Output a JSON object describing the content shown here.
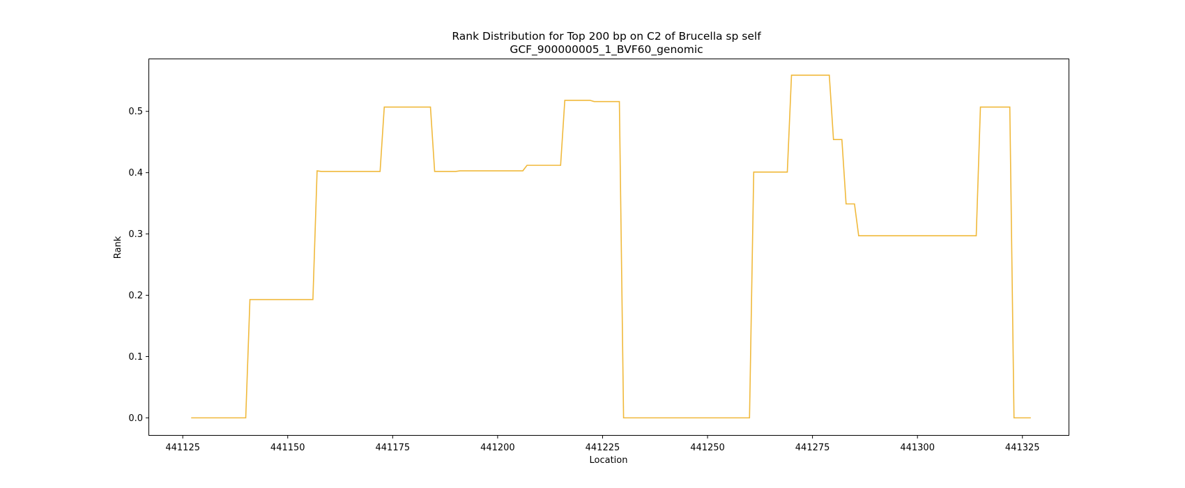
{
  "chart_data": {
    "type": "line",
    "title": "Rank Distribution for Top 200 bp on C2 of Brucella sp self",
    "subtitle": "GCF_900000005_1_BVF60_genomic",
    "xlabel": "Location",
    "ylabel": "Rank",
    "xlim": [
      441117,
      441336
    ],
    "ylim": [
      -0.028,
      0.585
    ],
    "xticks": [
      441125,
      441150,
      441175,
      441200,
      441225,
      441250,
      441275,
      441300,
      441325
    ],
    "yticks": [
      0.0,
      0.1,
      0.2,
      0.3,
      0.4,
      0.5
    ],
    "yticks_labels": [
      "0.0",
      "0.1",
      "0.2",
      "0.3",
      "0.4",
      "0.5"
    ],
    "grid": false,
    "color": "#f0b93b",
    "series": [
      {
        "x": [
          441127,
          441140,
          441141,
          441156,
          441157,
          441158,
          441172,
          441173,
          441184,
          441185,
          441190,
          441191,
          441206,
          441207,
          441209,
          441215,
          441216,
          441222,
          441223,
          441229,
          441230,
          441260,
          441261,
          441269,
          441270,
          441279,
          441280,
          441282,
          441283,
          441285,
          441286,
          441314,
          441315,
          441322,
          441323,
          441327
        ],
        "y": [
          0.0,
          0.0,
          0.193,
          0.193,
          0.403,
          0.402,
          0.402,
          0.507,
          0.507,
          0.402,
          0.402,
          0.403,
          0.403,
          0.412,
          0.412,
          0.412,
          0.518,
          0.518,
          0.516,
          0.516,
          0.0,
          0.0,
          0.401,
          0.401,
          0.559,
          0.559,
          0.454,
          0.454,
          0.349,
          0.349,
          0.297,
          0.297,
          0.507,
          0.507,
          0.0,
          0.0
        ]
      }
    ]
  }
}
